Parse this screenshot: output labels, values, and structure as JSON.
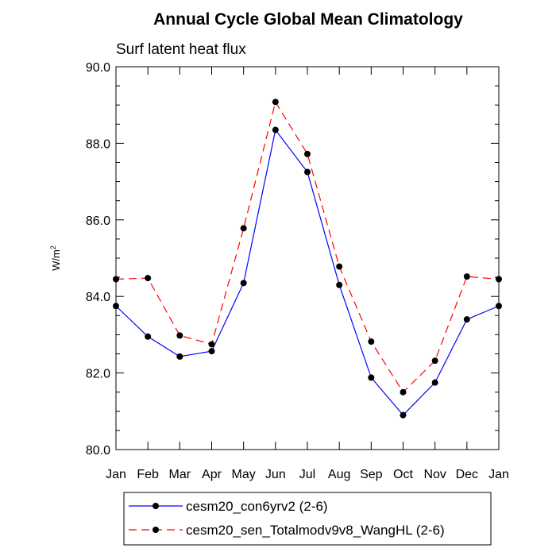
{
  "chart_data": {
    "type": "line",
    "title": "Annual Cycle Global Mean Climatology",
    "subtitle": "Surf latent heat flux",
    "ylabel": "W/m",
    "ylabel_sup": "2",
    "xlabel": "",
    "categories": [
      "Jan",
      "Feb",
      "Mar",
      "Apr",
      "May",
      "Jun",
      "Jul",
      "Aug",
      "Sep",
      "Oct",
      "Nov",
      "Dec",
      "Jan"
    ],
    "ylim": [
      80.0,
      90.0
    ],
    "yticks": [
      "80.0",
      "82.0",
      "84.0",
      "86.0",
      "88.0",
      "90.0"
    ],
    "ytick_values": [
      80,
      82,
      84,
      86,
      88,
      90
    ],
    "grid": false,
    "legend_position": "bottom",
    "series": [
      {
        "name": "cesm20_con6yrv2 (2-6)",
        "color": "#0000ff",
        "dash": "solid",
        "marker": "filled-circle",
        "values": [
          83.75,
          82.95,
          82.43,
          82.57,
          84.35,
          88.35,
          87.25,
          84.3,
          81.88,
          80.9,
          81.75,
          83.4,
          83.75
        ]
      },
      {
        "name": "cesm20_sen_Totalmodv9v8_WangHL (2-6)",
        "color": "#ff0000",
        "dash": "dashed",
        "marker": "filled-circle",
        "values": [
          84.45,
          84.48,
          82.98,
          82.75,
          85.78,
          89.08,
          87.72,
          84.78,
          82.82,
          81.5,
          82.32,
          84.52,
          84.45
        ]
      }
    ]
  }
}
